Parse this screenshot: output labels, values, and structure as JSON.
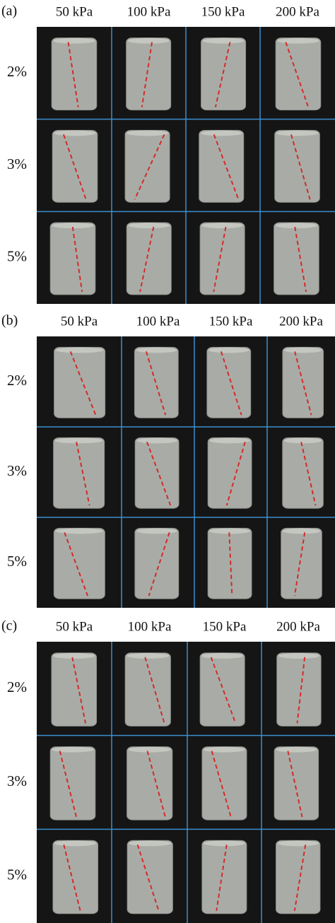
{
  "panels": [
    {
      "label": "(a)",
      "columns": [
        "50 kPa",
        "100 kPa",
        "150 kPa",
        "200 kPa"
      ],
      "rows": [
        "2%",
        "3%",
        "5%"
      ]
    },
    {
      "label": "(b)",
      "columns": [
        "50 kPa",
        "100 kPa",
        "150 kPa",
        "200 kPa"
      ],
      "rows": [
        "2%",
        "3%",
        "5%"
      ]
    },
    {
      "label": "(c)",
      "columns": [
        "50 kPa",
        "100 kPa",
        "150 kPa",
        "200 kPa"
      ],
      "rows": [
        "2%",
        "3%",
        "5%"
      ]
    }
  ]
}
